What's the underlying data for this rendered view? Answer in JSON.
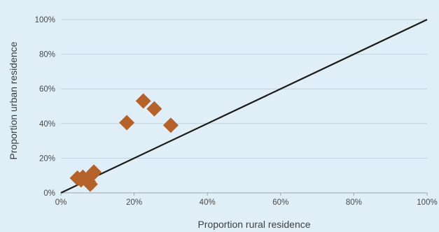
{
  "chart_data": {
    "type": "scatter",
    "xlabel": "Proportion rural residence",
    "ylabel": "Proportion urban residence",
    "xlim": [
      0,
      100
    ],
    "ylim": [
      0,
      100
    ],
    "x_ticks": [
      "0%",
      "20%",
      "40%",
      "60%",
      "80%",
      "100%"
    ],
    "y_ticks": [
      "0%",
      "20%",
      "40%",
      "60%",
      "80%",
      "100%"
    ],
    "grid": "horizontal",
    "marker": "diamond",
    "marker_color": "#b5622a",
    "reference_line": {
      "from": [
        0,
        0
      ],
      "to": [
        100,
        100
      ],
      "color": "#1a1a1a"
    },
    "points": [
      {
        "x": 4.5,
        "y": 8.5
      },
      {
        "x": 5.5,
        "y": 7.5
      },
      {
        "x": 6.0,
        "y": 9.0
      },
      {
        "x": 7.5,
        "y": 6.5
      },
      {
        "x": 8.0,
        "y": 5.0
      },
      {
        "x": 8.5,
        "y": 10.5
      },
      {
        "x": 9.0,
        "y": 12.0
      },
      {
        "x": 18.0,
        "y": 40.5
      },
      {
        "x": 22.5,
        "y": 53.0
      },
      {
        "x": 25.5,
        "y": 48.5
      },
      {
        "x": 30.0,
        "y": 39.0
      }
    ]
  }
}
